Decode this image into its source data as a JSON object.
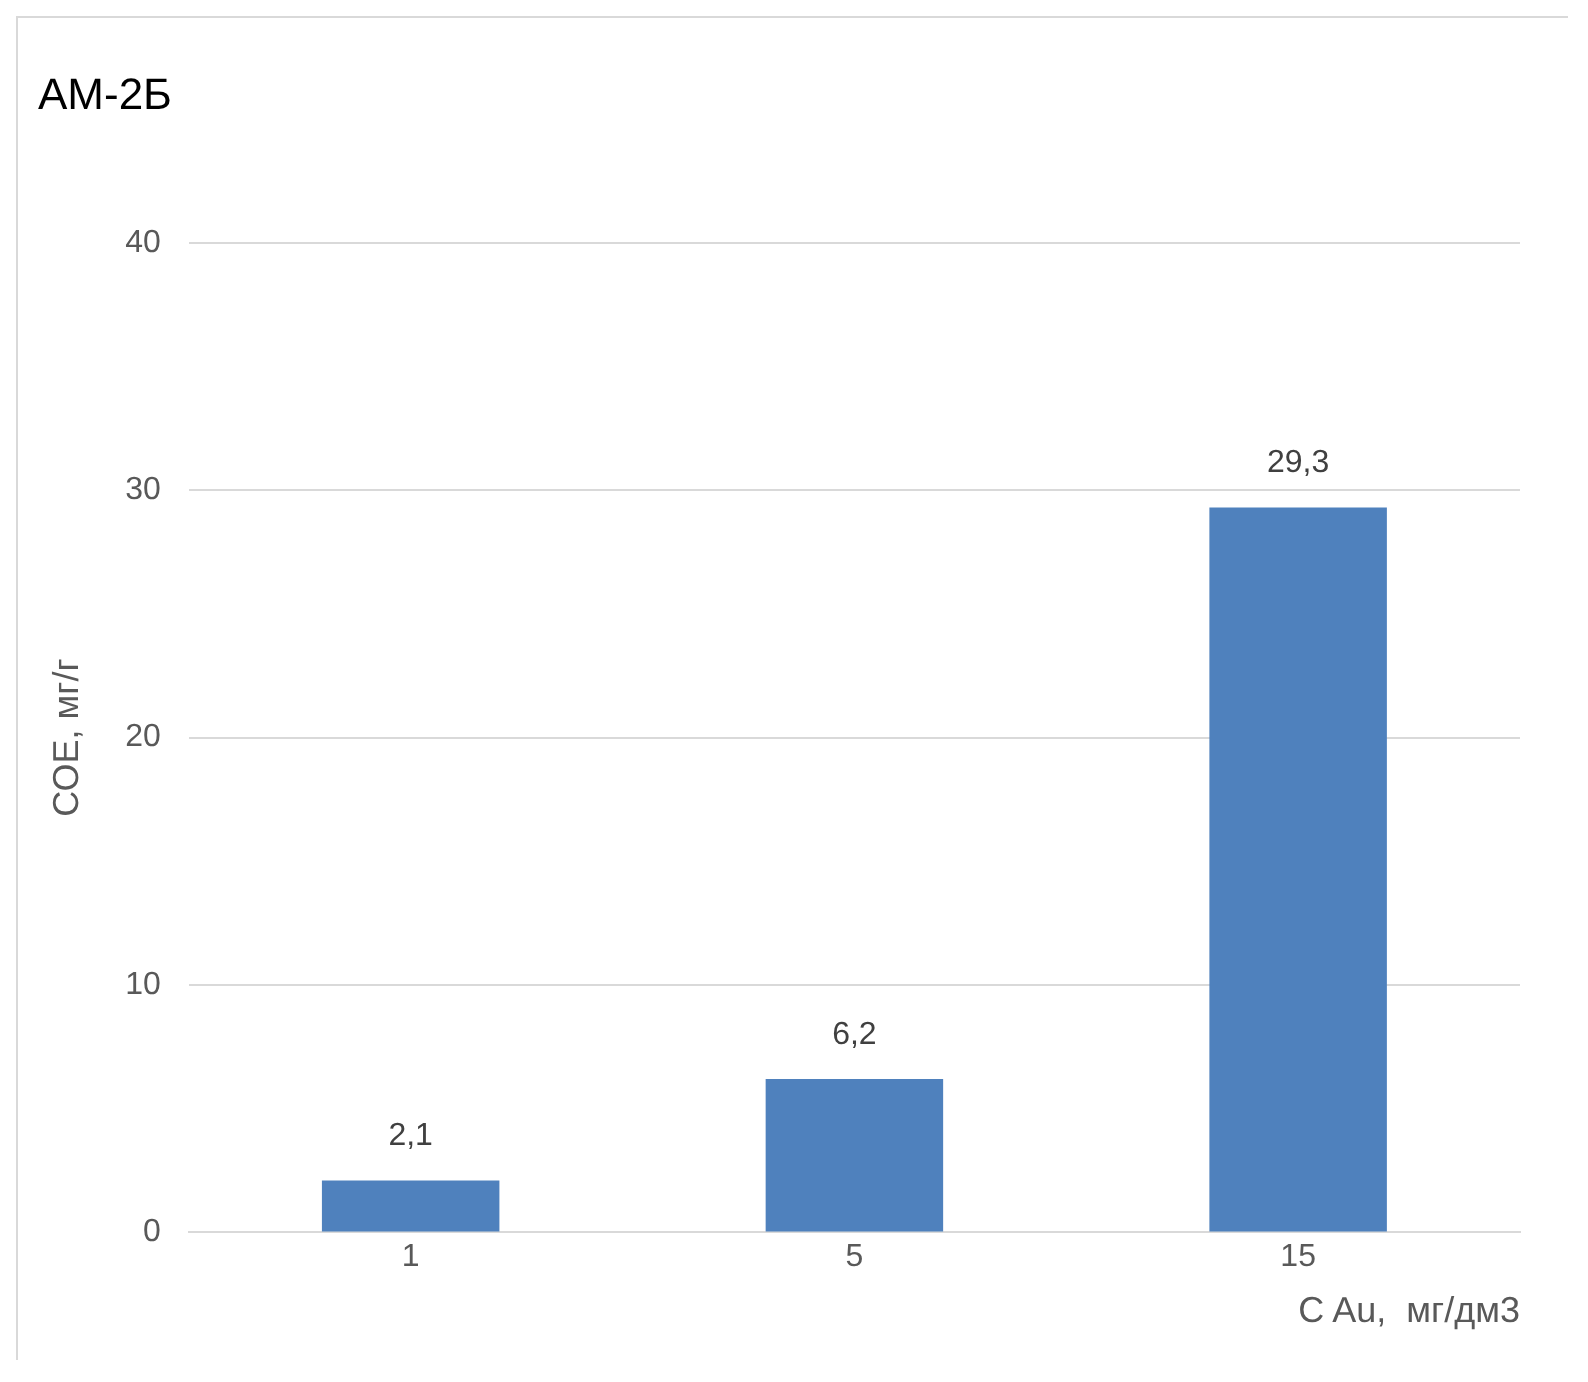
{
  "chart_data": {
    "type": "bar",
    "title": "АМ-2Б",
    "xlabel": "C Au,  мг/дм3",
    "ylabel": "СОЕ, мг/г",
    "categories": [
      "1",
      "5",
      "15"
    ],
    "values": [
      2.1,
      6.2,
      29.3
    ],
    "value_labels": [
      "2,1",
      "6,2",
      "29,3"
    ],
    "color": "#4f81bd",
    "ylim": [
      0,
      40
    ],
    "yticks": [
      0,
      10,
      20,
      30,
      40
    ],
    "grid": "y",
    "legend": false
  }
}
